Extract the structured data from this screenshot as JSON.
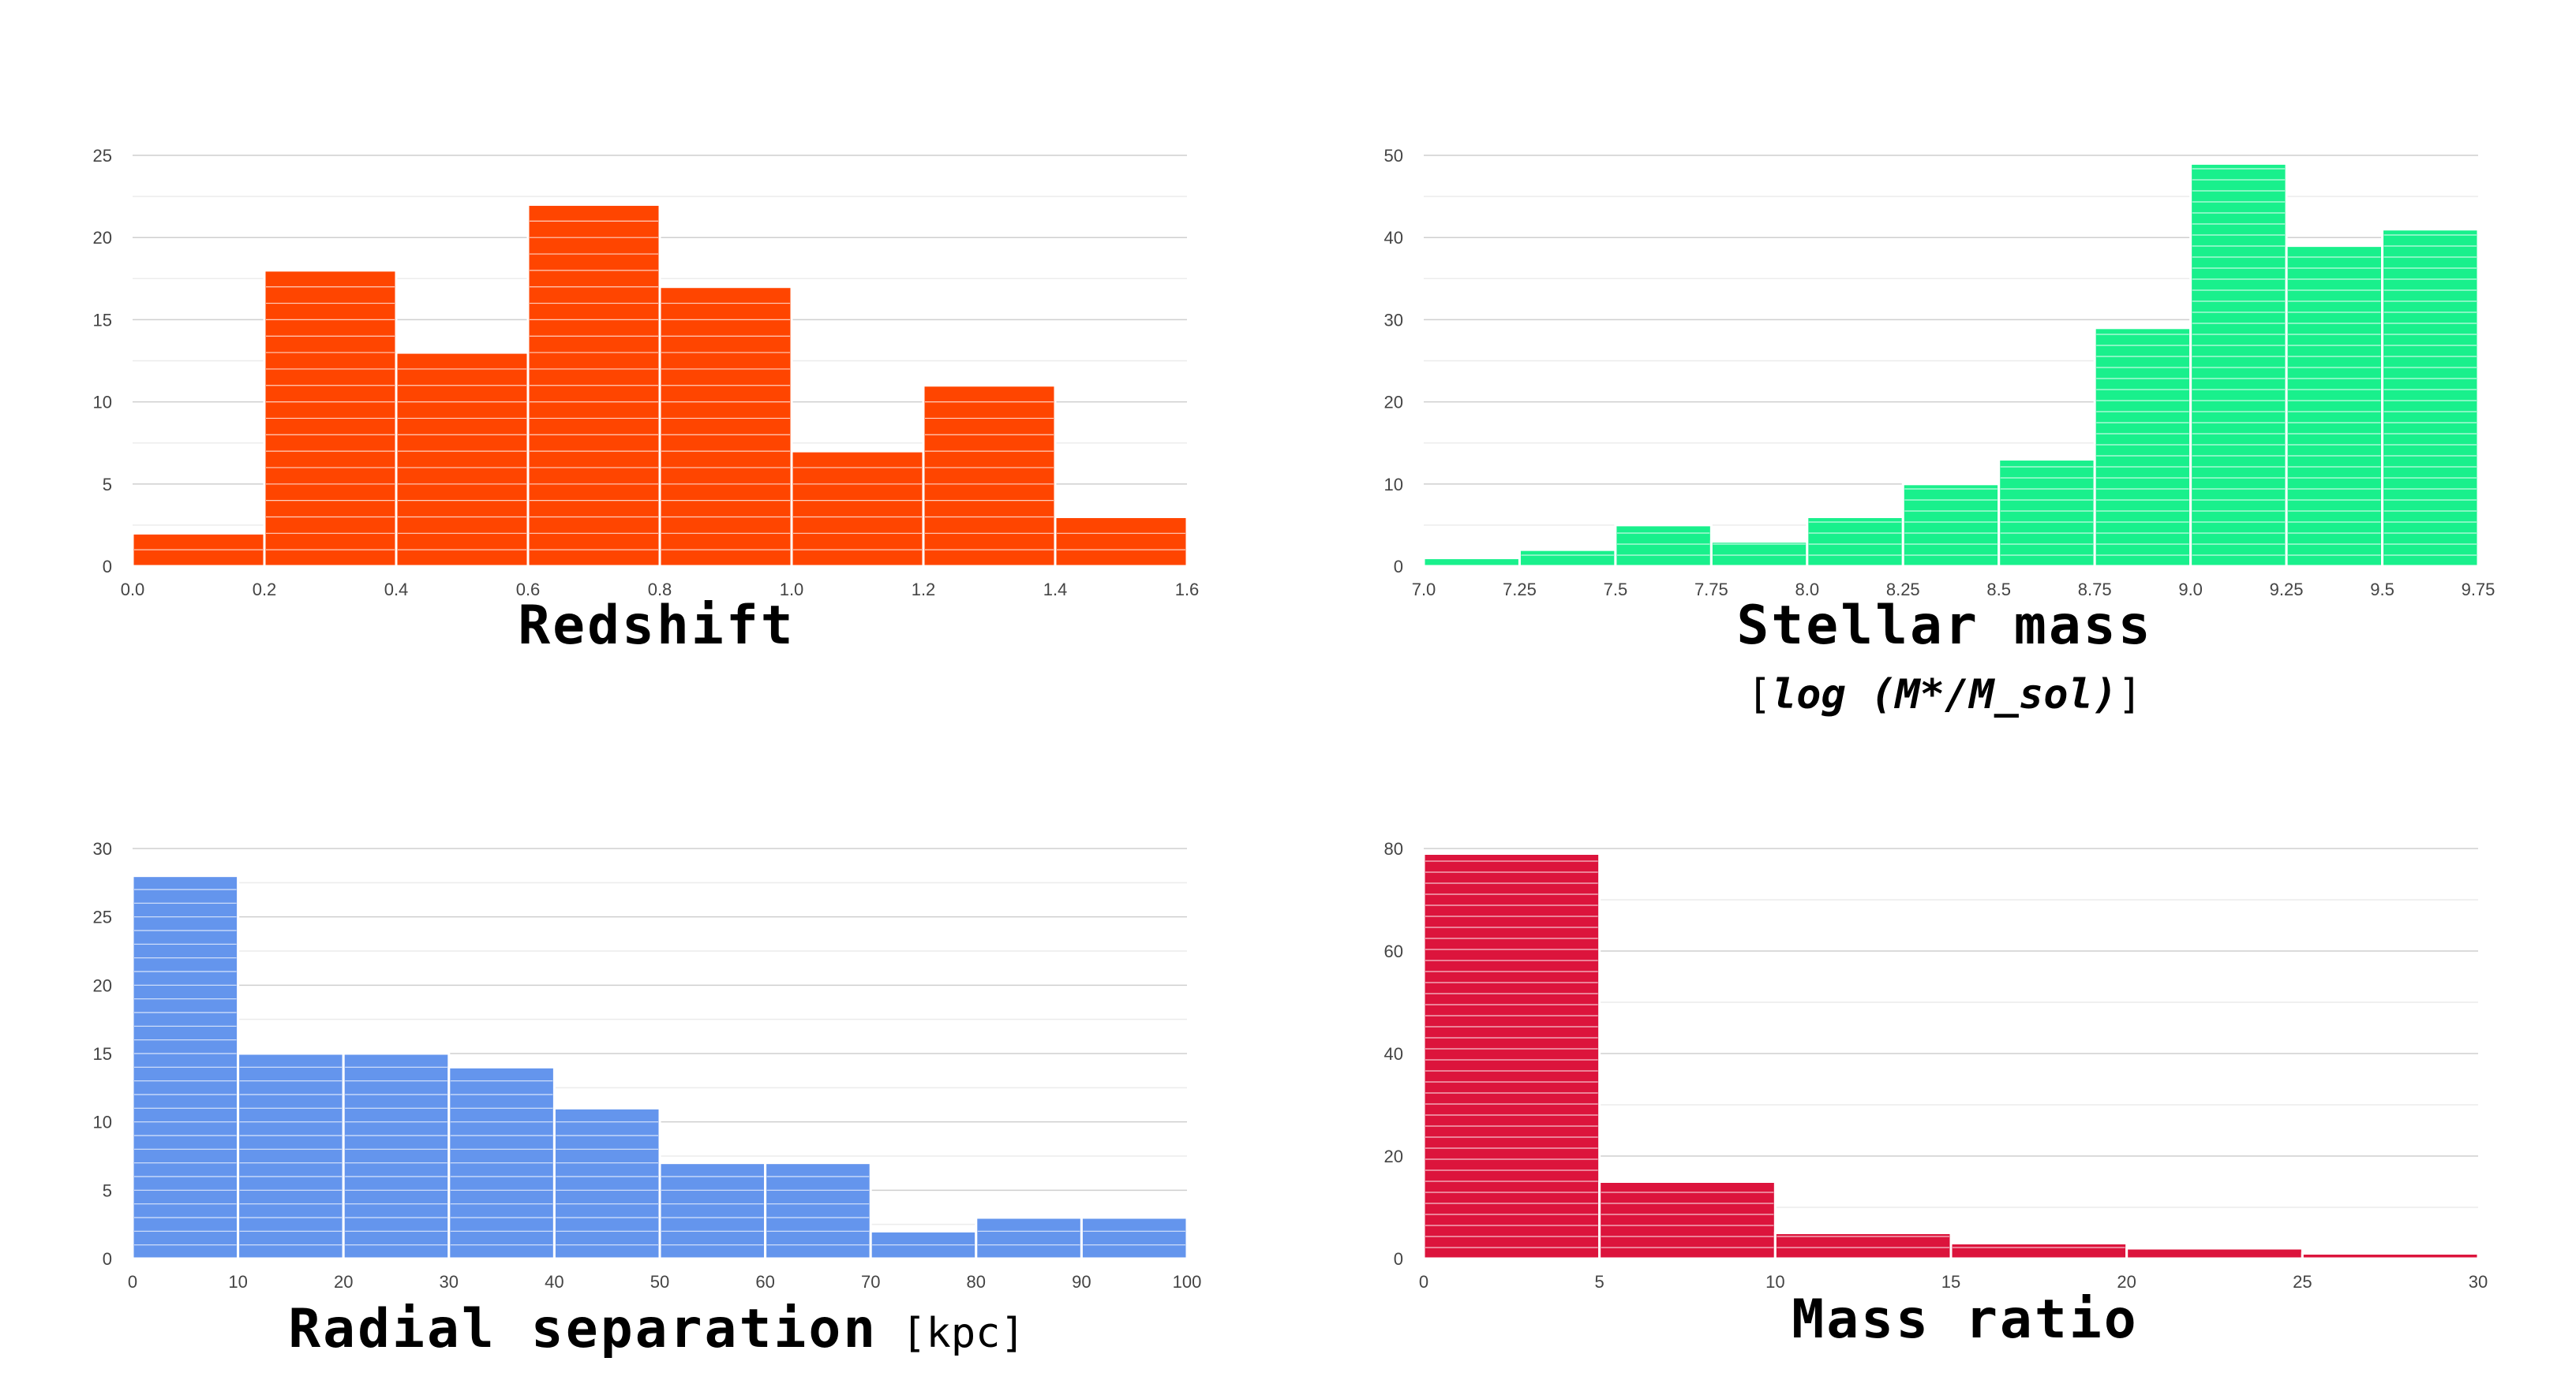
{
  "chart_data": [
    {
      "type": "bar",
      "color": "#ff4500",
      "bin_edges": [
        0.0,
        0.2,
        0.4,
        0.6,
        0.8,
        1.0,
        1.2,
        1.4,
        1.6
      ],
      "values": [
        2,
        18,
        13,
        22,
        17,
        7,
        11,
        3
      ],
      "x_ticks": [
        "0.0",
        "0.2",
        "0.4",
        "0.6",
        "0.8",
        "1.0",
        "1.2",
        "1.4",
        "1.6"
      ],
      "y_ticks": [
        "0",
        "5",
        "10",
        "15",
        "20",
        "25"
      ],
      "xlim": [
        0,
        1.6
      ],
      "ylim": [
        0,
        25
      ],
      "xlabel": "Redshift",
      "xlabel_sub": ""
    },
    {
      "type": "bar",
      "color": "#19f08c",
      "bin_edges": [
        7.0,
        7.25,
        7.5,
        7.75,
        8.0,
        8.25,
        8.5,
        8.75,
        9.0,
        9.25,
        9.5,
        9.75
      ],
      "values": [
        1,
        2,
        5,
        3,
        6,
        10,
        13,
        29,
        49,
        39,
        41
      ],
      "x_ticks": [
        "7.0",
        "7.25",
        "7.5",
        "7.75",
        "8.0",
        "8.25",
        "8.5",
        "8.75",
        "9.0",
        "9.25",
        "9.5",
        "9.75"
      ],
      "y_ticks": [
        "0",
        "10",
        "20",
        "30",
        "40",
        "50"
      ],
      "xlim": [
        7.0,
        9.75
      ],
      "ylim": [
        0,
        50
      ],
      "xlabel": "Stellar mass",
      "xlabel_sub_open": "[",
      "xlabel_sub": "log (M*/M_sol)",
      "xlabel_sub_close": "]"
    },
    {
      "type": "bar",
      "color": "#6495ed",
      "bin_edges": [
        0,
        10,
        20,
        30,
        40,
        50,
        60,
        70,
        80,
        90,
        100
      ],
      "values": [
        28,
        15,
        15,
        14,
        11,
        7,
        7,
        2,
        3,
        3
      ],
      "x_ticks": [
        "0",
        "10",
        "20",
        "30",
        "40",
        "50",
        "60",
        "70",
        "80",
        "90",
        "100"
      ],
      "y_ticks": [
        "0",
        "5",
        "10",
        "15",
        "20",
        "25",
        "30"
      ],
      "xlim": [
        0,
        100
      ],
      "ylim": [
        0,
        30
      ],
      "xlabel": "Radial separation",
      "xlabel_sub": "[kpc]"
    },
    {
      "type": "bar",
      "color": "#dc143c",
      "bin_edges": [
        0,
        5,
        10,
        15,
        20,
        25,
        30
      ],
      "values": [
        79,
        15,
        5,
        3,
        2,
        1
      ],
      "x_ticks": [
        "0",
        "5",
        "10",
        "15",
        "20",
        "25",
        "30"
      ],
      "y_ticks": [
        "0",
        "20",
        "40",
        "60",
        "80"
      ],
      "xlim": [
        0,
        30
      ],
      "ylim": [
        0,
        80
      ],
      "xlabel": "Mass ratio",
      "xlabel_sub": ""
    }
  ]
}
